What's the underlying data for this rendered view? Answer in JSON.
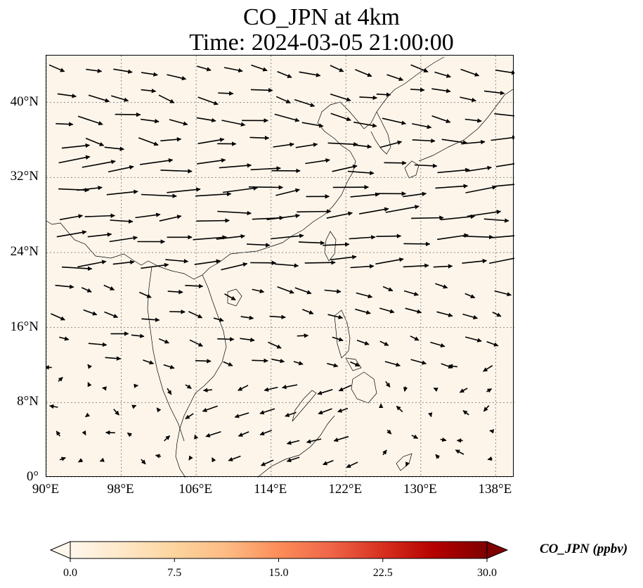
{
  "title_line1": "CO_JPN at 4km",
  "title_line2": "Time: 2024-03-05 21:00:00",
  "map": {
    "lon_range": [
      90,
      140
    ],
    "lat_range": [
      0,
      45
    ],
    "lon_ticks": [
      90,
      98,
      106,
      114,
      122,
      130,
      138
    ],
    "lat_ticks": [
      0,
      8,
      16,
      24,
      32,
      40
    ],
    "lon_labels": [
      "90°E",
      "98°E",
      "106°E",
      "114°E",
      "122°E",
      "130°E",
      "138°E"
    ],
    "lat_labels": [
      "0°",
      "8°N",
      "16°N",
      "24°N",
      "32°N",
      "40°N"
    ],
    "background_color": "#fdf5ea",
    "gridline_color": "#8a8a8a",
    "vector_color": "#000000",
    "coastline_color": "#000000"
  },
  "colorbar": {
    "label": "CO_JPN (ppbv)",
    "min": 0.0,
    "max": 30.0,
    "tick_labels": [
      "0.0",
      "7.5",
      "15.0",
      "22.5",
      "30.0"
    ],
    "ticks": [
      0,
      7.5,
      15,
      22.5,
      30
    ],
    "colormap": "OrRd",
    "colors": [
      "#fff7ec",
      "#fee8c8",
      "#fdd49e",
      "#fdbb84",
      "#fc8d59",
      "#ef6548",
      "#d7301f",
      "#b30000",
      "#7f0000"
    ],
    "extend": "both"
  }
}
